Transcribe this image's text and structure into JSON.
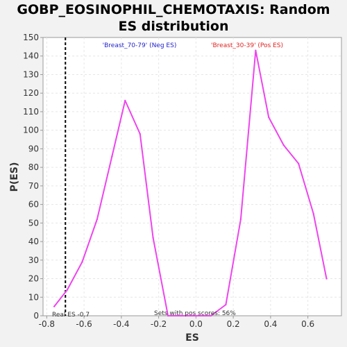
{
  "chart_data": {
    "type": "line",
    "title_lines": [
      "GOBP_EOSINOPHIL_CHEMOTAXIS: Random",
      "ES distribution"
    ],
    "xlabel": "ES",
    "ylabel": "P(ES)",
    "xlim": [
      -0.82,
      0.78
    ],
    "ylim": [
      0,
      150
    ],
    "x_ticks": [
      -0.8,
      -0.6,
      -0.4,
      -0.2,
      0.0,
      0.2,
      0.4,
      0.6
    ],
    "x_tick_labels": [
      "-0.8",
      "-0.6",
      "-0.4",
      "-0.2",
      "0.0",
      "0.2",
      "0.4",
      "0.6"
    ],
    "y_ticks": [
      0,
      10,
      20,
      30,
      40,
      50,
      60,
      70,
      80,
      90,
      100,
      110,
      120,
      130,
      140,
      150
    ],
    "grid": true,
    "series": [
      {
        "color": "#ee44ee",
        "x": [
          -0.76,
          -0.69,
          -0.61,
          -0.53,
          -0.45,
          -0.38,
          -0.3,
          -0.23,
          -0.15,
          -0.08,
          0.0,
          0.08,
          0.16,
          0.24,
          0.32,
          0.39,
          0.47,
          0.55,
          0.63,
          0.7
        ],
        "y": [
          5,
          14,
          29,
          52,
          86,
          116,
          98,
          42,
          0,
          0,
          0,
          0,
          6,
          52,
          143,
          107,
          92,
          82,
          55,
          20
        ]
      }
    ],
    "annotations": {
      "neg_label": "'Breast_70-79' (Neg ES)",
      "neg_color": "#2222cc",
      "pos_label": "'Breast_30-39' (Pos ES)",
      "pos_color": "#dd2222",
      "real_es_label": "Real ES -0.7",
      "real_es_value": -0.7,
      "sets_label": "Sets with pos scores: 56%"
    }
  }
}
